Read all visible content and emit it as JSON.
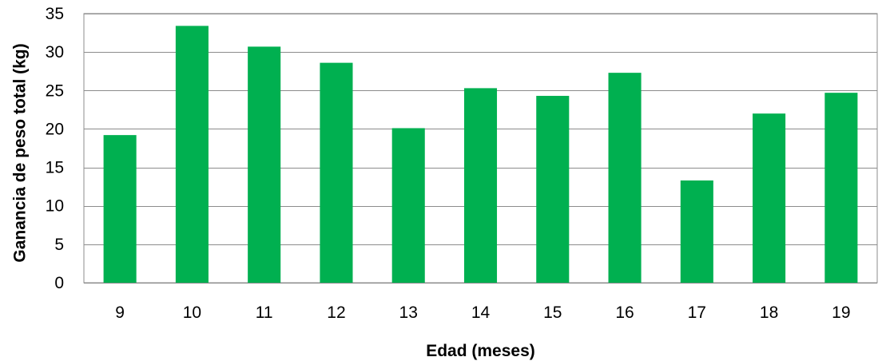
{
  "chart_data": {
    "type": "bar",
    "xlabel": "Edad (meses)",
    "ylabel": "Ganancia de peso total (kg)",
    "categories": [
      "9",
      "10",
      "11",
      "12",
      "13",
      "14",
      "15",
      "16",
      "17",
      "18",
      "19"
    ],
    "values": [
      19.2,
      33.4,
      30.7,
      28.6,
      20.1,
      25.3,
      24.3,
      27.3,
      13.3,
      22.0,
      24.7
    ],
    "ylim": [
      0,
      35
    ],
    "yticks": [
      "0",
      "5",
      "10",
      "15",
      "20",
      "25",
      "30",
      "35"
    ],
    "grid": true,
    "bar_color": "#00B050",
    "grid_color": "#8C8C8C"
  }
}
